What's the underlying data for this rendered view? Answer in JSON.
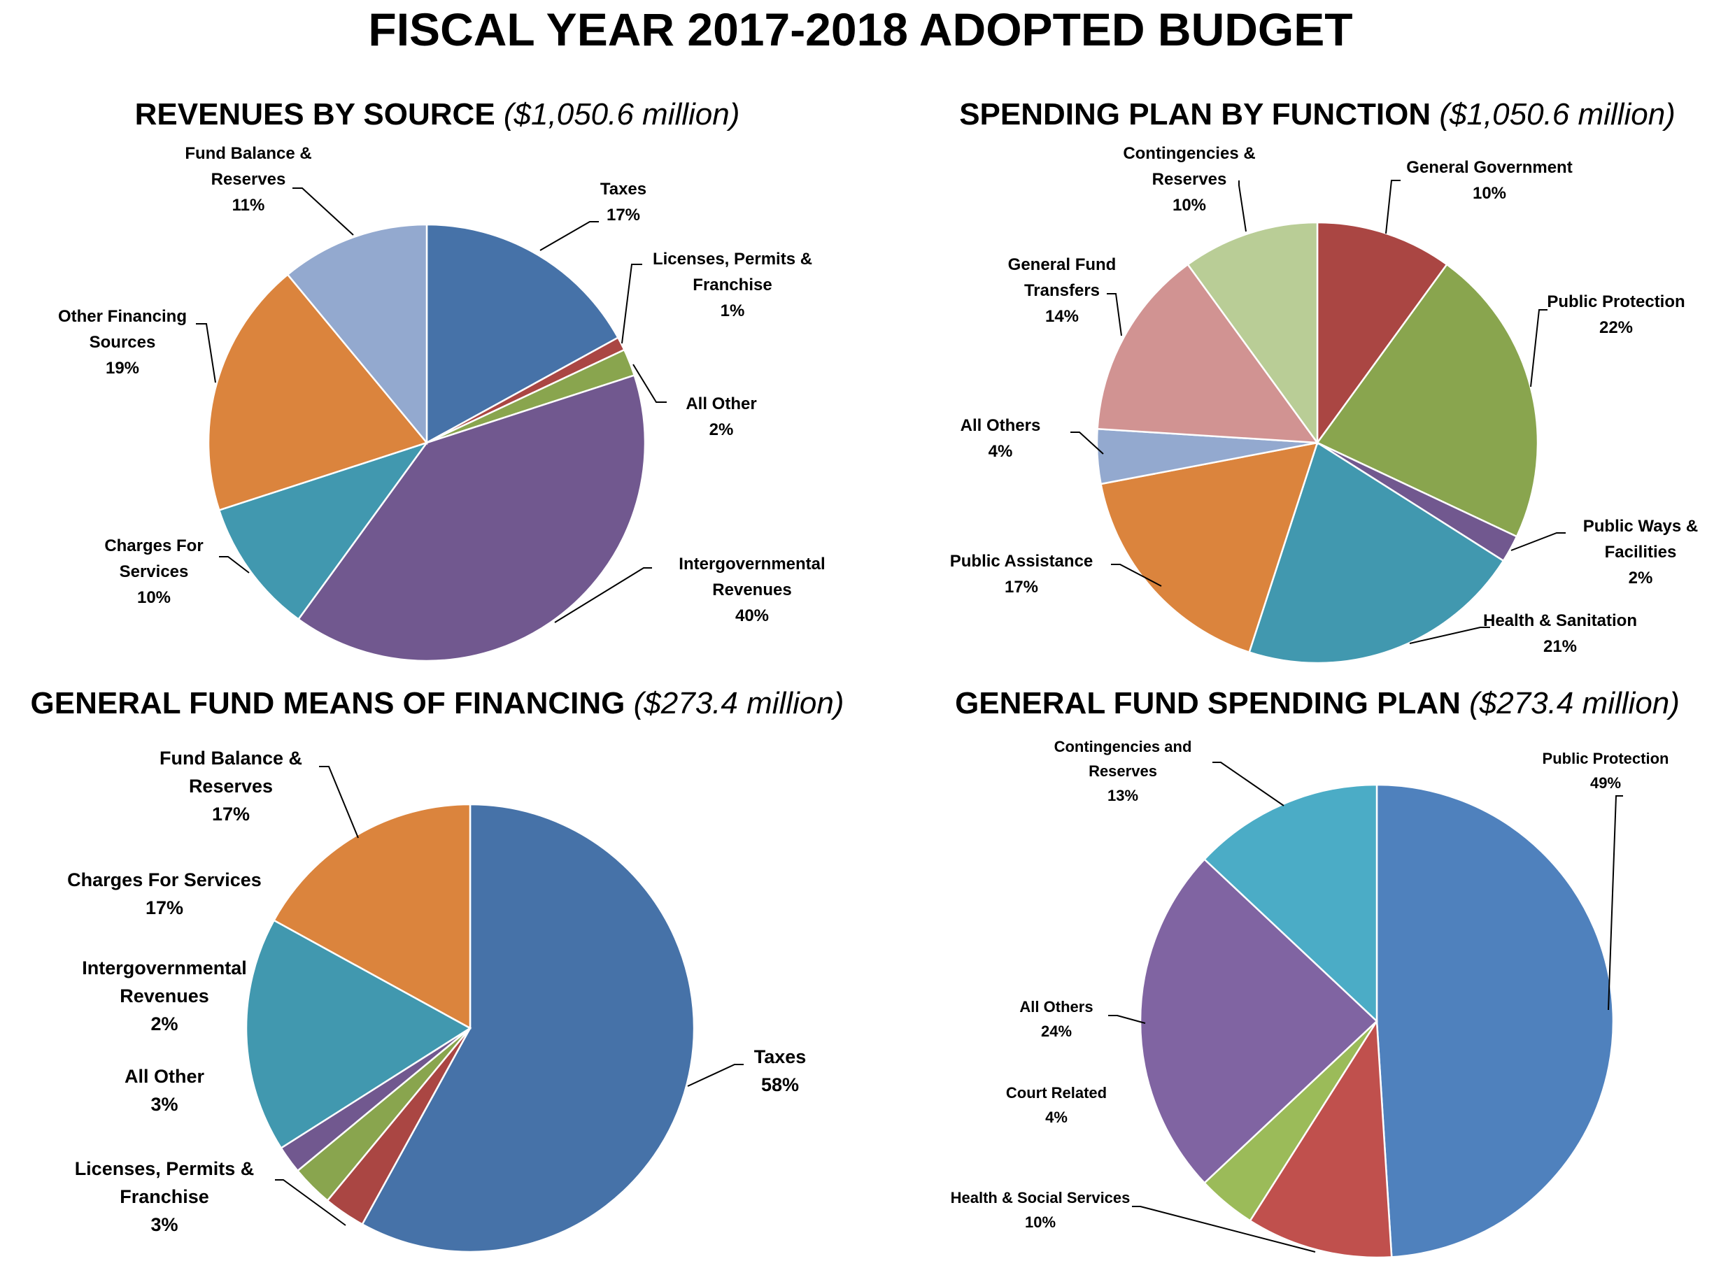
{
  "title": "FISCAL YEAR 2017-2018 ADOPTED BUDGET",
  "chart_data": [
    {
      "type": "pie",
      "title": "REVENUES BY SOURCE",
      "subtitle": "($1,050.6 million)",
      "categories": [
        "Taxes",
        "Licenses, Permits & Franchise",
        "All Other",
        "Intergovernmental Revenues",
        "Charges For Services",
        "Other Financing Sources",
        "Fund Balance & Reserves"
      ],
      "values": [
        17,
        1,
        2,
        40,
        10,
        19,
        11
      ],
      "colors": [
        "#4672A8",
        "#AA4643",
        "#89A54E",
        "#71588F",
        "#4198AF",
        "#DB843D",
        "#93A9CF"
      ],
      "labels": [
        {
          "lines": [
            "Taxes",
            "17%"
          ]
        },
        {
          "lines": [
            "Licenses, Permits &",
            "Franchise",
            "1%"
          ]
        },
        {
          "lines": [
            "All Other",
            "2%"
          ]
        },
        {
          "lines": [
            "Intergovernmental",
            "Revenues",
            "40%"
          ]
        },
        {
          "lines": [
            "Charges For",
            "Services",
            "10%"
          ]
        },
        {
          "lines": [
            "Other Financing",
            "Sources",
            "19%"
          ]
        },
        {
          "lines": [
            "Fund Balance &",
            "Reserves",
            "11%"
          ]
        }
      ]
    },
    {
      "type": "pie",
      "title": "SPENDING PLAN BY FUNCTION",
      "subtitle": "($1,050.6 million)",
      "categories": [
        "General Government",
        "Public Protection",
        "Public Ways & Facilities",
        "Health & Sanitation",
        "Public Assistance",
        "All Others",
        "General Fund Transfers",
        "Contingencies & Reserves"
      ],
      "values": [
        10,
        22,
        2,
        21,
        17,
        4,
        14,
        10
      ],
      "colors": [
        "#AA4643",
        "#89A54E",
        "#71588F",
        "#4198AF",
        "#DB843D",
        "#93A9CF",
        "#D19392",
        "#B9CD96"
      ],
      "labels": [
        {
          "lines": [
            "General Government",
            "10%"
          ]
        },
        {
          "lines": [
            "Public Protection",
            "22%"
          ]
        },
        {
          "lines": [
            "Public Ways &",
            "Facilities",
            "2%"
          ]
        },
        {
          "lines": [
            "Health & Sanitation",
            "21%"
          ]
        },
        {
          "lines": [
            "Public Assistance",
            "17%"
          ]
        },
        {
          "lines": [
            "All Others",
            "4%"
          ]
        },
        {
          "lines": [
            "General Fund",
            "Transfers",
            "14%"
          ]
        },
        {
          "lines": [
            "Contingencies &",
            "Reserves",
            "10%"
          ]
        }
      ]
    },
    {
      "type": "pie",
      "title": "GENERAL FUND MEANS OF FINANCING",
      "subtitle": "($273.4 million)",
      "categories": [
        "Taxes",
        "Licenses, Permits & Franchise",
        "All Other",
        "Intergovernmental Revenues",
        "Charges For Services",
        "Fund Balance & Reserves"
      ],
      "values": [
        58,
        3,
        3,
        2,
        17,
        17
      ],
      "colors": [
        "#4672A8",
        "#AA4643",
        "#89A54E",
        "#71588F",
        "#4198AF",
        "#DB843D"
      ],
      "labels": [
        {
          "lines": [
            "Taxes",
            "58%"
          ]
        },
        {
          "lines": [
            "Licenses, Permits &",
            "Franchise",
            "3%"
          ]
        },
        {
          "lines": [
            "All Other",
            "3%"
          ]
        },
        {
          "lines": [
            "Intergovernmental",
            "Revenues",
            "2%"
          ]
        },
        {
          "lines": [
            "Charges For Services",
            "17%"
          ]
        },
        {
          "lines": [
            "Fund Balance  &",
            "Reserves",
            "17%"
          ]
        }
      ]
    },
    {
      "type": "pie",
      "title": "GENERAL FUND SPENDING PLAN",
      "subtitle": "($273.4 million)",
      "categories": [
        "Public Protection",
        "Health & Social Services",
        "Court Related",
        "All Others",
        "Contingencies and Reserves"
      ],
      "values": [
        49,
        10,
        4,
        24,
        13
      ],
      "colors": [
        "#4F81BD",
        "#C0504D",
        "#9BBB59",
        "#8064A2",
        "#4BACC6"
      ],
      "labels": [
        {
          "lines": [
            "Public Protection",
            "49%"
          ]
        },
        {
          "lines": [
            "Health & Social Services",
            "10%"
          ]
        },
        {
          "lines": [
            "Court Related",
            "4%"
          ]
        },
        {
          "lines": [
            "All Others",
            "24%"
          ]
        },
        {
          "lines": [
            "Contingencies and",
            "Reserves",
            "13%"
          ]
        }
      ]
    }
  ]
}
